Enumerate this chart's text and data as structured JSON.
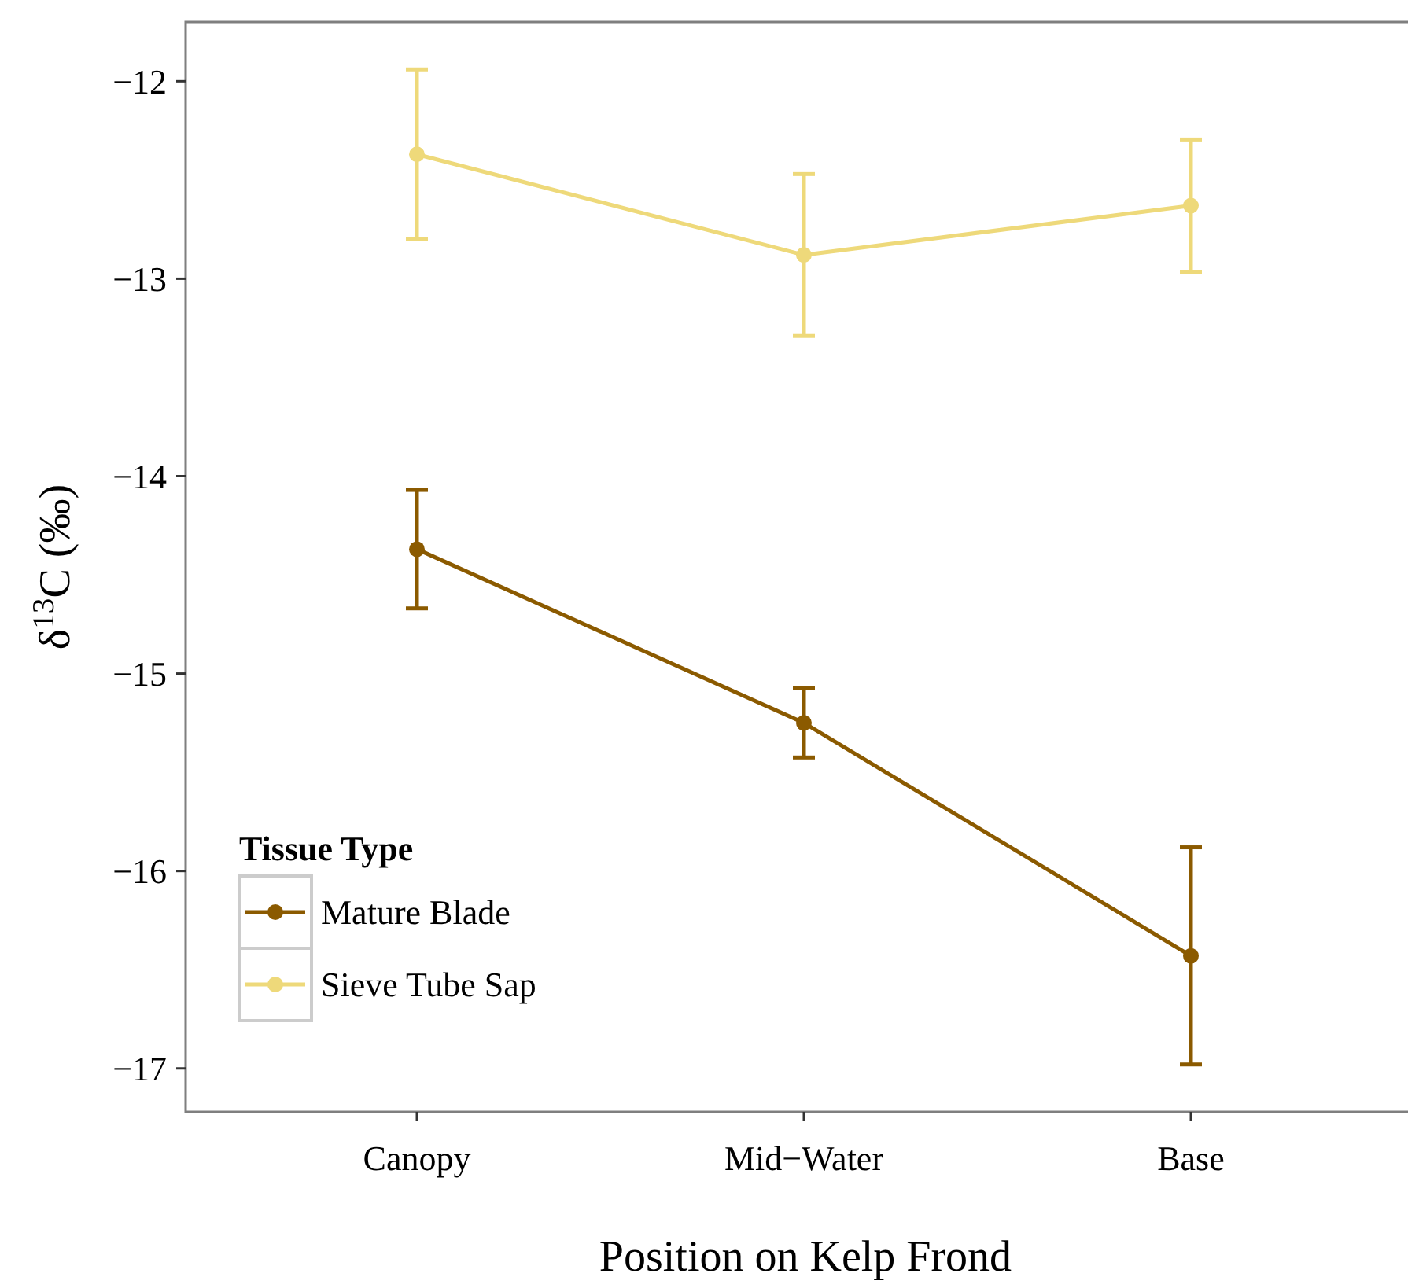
{
  "chart_data": {
    "type": "line",
    "xlabel": "Position on Kelp Frond",
    "ylabel": "δ$^{13}$C (‰)",
    "legend_title": "Tissue Type",
    "categories": [
      "Canopy",
      "Mid−Water",
      "Base"
    ],
    "series": [
      {
        "name": "Mature Blade",
        "color": "#8b5a00",
        "values": [
          -14.37,
          -15.25,
          -16.43
        ],
        "errors": [
          0.3,
          0.175,
          0.55
        ]
      },
      {
        "name": "Sieve Tube Sap",
        "color": "#eed97a",
        "values": [
          -12.37,
          -12.88,
          -12.63
        ],
        "errors": [
          0.43,
          0.41,
          0.335
        ]
      }
    ],
    "ylim": [
      -17.22,
      -11.7
    ],
    "yticks": [
      {
        "value": -12,
        "label": "−12"
      },
      {
        "value": -13,
        "label": "−13"
      },
      {
        "value": -14,
        "label": "−14"
      },
      {
        "value": -15,
        "label": "−15"
      },
      {
        "value": -16,
        "label": "−16"
      },
      {
        "value": -17,
        "label": "−17"
      }
    ],
    "grid": false,
    "legend": "bottom left",
    "marker": "circle",
    "line_style": "solid"
  }
}
